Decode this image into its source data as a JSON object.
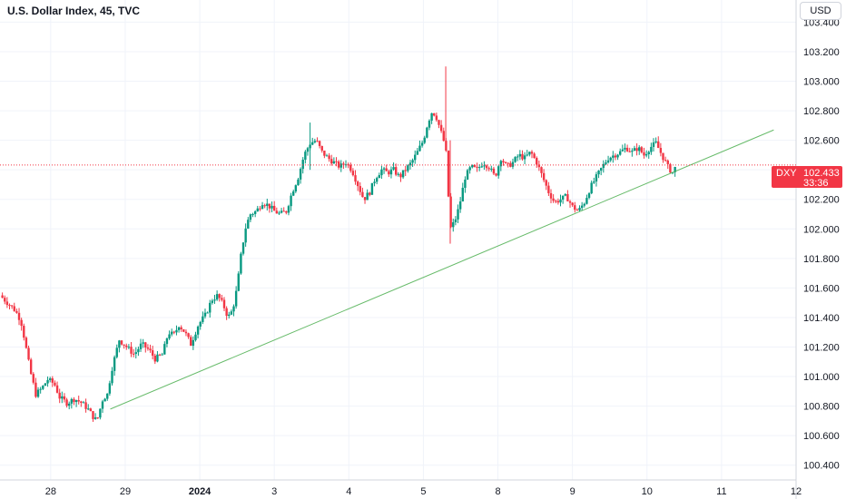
{
  "header": {
    "title": "U.S. Dollar Index, 45, TVC"
  },
  "currency_button": "USD",
  "price_badge": {
    "symbol": "DXY",
    "price": "102.433",
    "countdown": "33:36",
    "color": "#f23645"
  },
  "colors": {
    "up": "#089981",
    "down": "#f23645",
    "trendline": "#4caf50",
    "grid": "#f0f3fa"
  },
  "chart_data": {
    "type": "candlestick",
    "title": "U.S. Dollar Index, 45, TVC",
    "ylim": [
      100.3,
      103.55
    ],
    "y_ticks": [
      "103.400",
      "103.200",
      "103.000",
      "102.800",
      "102.600",
      "102.400",
      "102.200",
      "102.000",
      "101.800",
      "101.600",
      "101.400",
      "101.200",
      "101.000",
      "100.800",
      "100.600",
      "100.400"
    ],
    "x_ticks": [
      {
        "label": "28",
        "pos": 0.5
      },
      {
        "label": "29",
        "pos": 1.5
      },
      {
        "label": "2024",
        "pos": 2.5,
        "bold": true
      },
      {
        "label": "3",
        "pos": 3.5
      },
      {
        "label": "4",
        "pos": 4.5
      },
      {
        "label": "5",
        "pos": 5.5
      },
      {
        "label": "8",
        "pos": 6.5
      },
      {
        "label": "9",
        "pos": 7.5
      },
      {
        "label": "10",
        "pos": 8.5
      },
      {
        "label": "11",
        "pos": 9.5
      },
      {
        "label": "12",
        "pos": 10.5
      }
    ],
    "x_range": [
      -0.18,
      10.5
    ],
    "grid": true,
    "current_price": 102.433,
    "trendline": {
      "from": [
        1.3,
        100.78
      ],
      "to": [
        10.2,
        102.67
      ]
    },
    "close_path": [
      [
        -0.18,
        101.55
      ],
      [
        -0.08,
        101.5
      ],
      [
        0.02,
        101.45
      ],
      [
        0.1,
        101.38
      ],
      [
        0.15,
        101.25
      ],
      [
        0.22,
        101.05
      ],
      [
        0.3,
        100.88
      ],
      [
        0.38,
        100.92
      ],
      [
        0.46,
        100.98
      ],
      [
        0.55,
        100.95
      ],
      [
        0.62,
        100.86
      ],
      [
        0.72,
        100.82
      ],
      [
        0.82,
        100.85
      ],
      [
        0.92,
        100.82
      ],
      [
        1.0,
        100.78
      ],
      [
        1.08,
        100.72
      ],
      [
        1.12,
        100.7
      ],
      [
        1.2,
        100.85
      ],
      [
        1.26,
        100.88
      ],
      [
        1.32,
        101.05
      ],
      [
        1.42,
        101.25
      ],
      [
        1.52,
        101.2
      ],
      [
        1.62,
        101.15
      ],
      [
        1.72,
        101.22
      ],
      [
        1.82,
        101.18
      ],
      [
        1.9,
        101.12
      ],
      [
        2.0,
        101.15
      ],
      [
        2.08,
        101.3
      ],
      [
        2.15,
        101.28
      ],
      [
        2.22,
        101.35
      ],
      [
        2.3,
        101.3
      ],
      [
        2.38,
        101.22
      ],
      [
        2.48,
        101.35
      ],
      [
        2.58,
        101.42
      ],
      [
        2.66,
        101.52
      ],
      [
        2.74,
        101.55
      ],
      [
        2.82,
        101.48
      ],
      [
        2.88,
        101.4
      ],
      [
        2.94,
        101.45
      ],
      [
        3.0,
        101.6
      ],
      [
        3.06,
        101.85
      ],
      [
        3.12,
        102.02
      ],
      [
        3.18,
        102.1
      ],
      [
        3.26,
        102.12
      ],
      [
        3.34,
        102.18
      ],
      [
        3.42,
        102.16
      ],
      [
        3.5,
        102.12
      ],
      [
        3.58,
        102.1
      ],
      [
        3.66,
        102.12
      ],
      [
        3.74,
        102.25
      ],
      [
        3.82,
        102.35
      ],
      [
        3.9,
        102.5
      ],
      [
        3.98,
        102.58
      ],
      [
        4.06,
        102.6
      ],
      [
        4.14,
        102.52
      ],
      [
        4.22,
        102.48
      ],
      [
        4.3,
        102.45
      ],
      [
        4.38,
        102.42
      ],
      [
        4.46,
        102.45
      ],
      [
        4.54,
        102.4
      ],
      [
        4.62,
        102.3
      ],
      [
        4.7,
        102.2
      ],
      [
        4.78,
        102.25
      ],
      [
        4.86,
        102.35
      ],
      [
        4.94,
        102.4
      ],
      [
        5.02,
        102.38
      ],
      [
        5.1,
        102.4
      ],
      [
        5.18,
        102.35
      ],
      [
        5.26,
        102.4
      ],
      [
        5.34,
        102.45
      ],
      [
        5.42,
        102.52
      ],
      [
        5.5,
        102.6
      ],
      [
        5.56,
        102.72
      ],
      [
        5.62,
        102.8
      ],
      [
        5.68,
        102.75
      ],
      [
        5.74,
        102.65
      ],
      [
        5.8,
        102.55
      ],
      [
        5.86,
        102.0
      ],
      [
        5.92,
        102.05
      ],
      [
        5.98,
        102.15
      ],
      [
        6.06,
        102.35
      ],
      [
        6.14,
        102.42
      ],
      [
        6.22,
        102.4
      ],
      [
        6.3,
        102.45
      ],
      [
        6.38,
        102.42
      ],
      [
        6.46,
        102.35
      ],
      [
        6.54,
        102.48
      ],
      [
        6.62,
        102.42
      ],
      [
        6.7,
        102.45
      ],
      [
        6.78,
        102.5
      ],
      [
        6.86,
        102.48
      ],
      [
        6.94,
        102.52
      ],
      [
        7.02,
        102.45
      ],
      [
        7.1,
        102.35
      ],
      [
        7.18,
        102.25
      ],
      [
        7.26,
        102.18
      ],
      [
        7.34,
        102.2
      ],
      [
        7.42,
        102.22
      ],
      [
        7.5,
        102.15
      ],
      [
        7.58,
        102.12
      ],
      [
        7.66,
        102.18
      ],
      [
        7.74,
        102.28
      ],
      [
        7.82,
        102.35
      ],
      [
        7.9,
        102.42
      ],
      [
        7.98,
        102.48
      ],
      [
        8.06,
        102.5
      ],
      [
        8.14,
        102.52
      ],
      [
        8.22,
        102.55
      ],
      [
        8.3,
        102.52
      ],
      [
        8.38,
        102.55
      ],
      [
        8.46,
        102.5
      ],
      [
        8.54,
        102.55
      ],
      [
        8.62,
        102.58
      ],
      [
        8.7,
        102.5
      ],
      [
        8.78,
        102.42
      ],
      [
        8.84,
        102.38
      ],
      [
        8.9,
        102.433
      ]
    ]
  }
}
